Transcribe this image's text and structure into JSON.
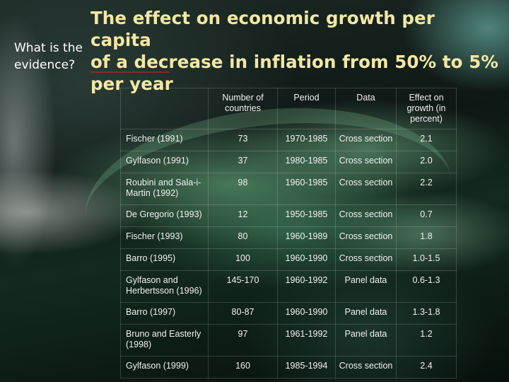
{
  "slide": {
    "question": "What is the evidence?",
    "title": "The effect on economic growth per capita\nof a decrease in inflation from 50% to 5%\nper year"
  },
  "table": {
    "columns": [
      "",
      "Number of countries",
      "Period",
      "Data",
      "Effect on growth (in percent)"
    ],
    "rows": [
      {
        "study": "Fischer (1991)",
        "countries": "73",
        "period": "1970-1985",
        "data": "Cross section",
        "effect": "2.1"
      },
      {
        "study": "Gylfason (1991)",
        "countries": "37",
        "period": "1980-1985",
        "data": "Cross section",
        "effect": "2.0"
      },
      {
        "study": "Roubini and Sala-i-Martin (1992)",
        "countries": "98",
        "period": "1960-1985",
        "data": "Cross section",
        "effect": "2.2"
      },
      {
        "study": "De Gregorio (1993)",
        "countries": "12",
        "period": "1950-1985",
        "data": "Cross section",
        "effect": "0.7"
      },
      {
        "study": "Fischer (1993)",
        "countries": "80",
        "period": "1960-1989",
        "data": "Cross section",
        "effect": "1.8"
      },
      {
        "study": "Barro (1995)",
        "countries": "100",
        "period": "1960-1990",
        "data": "Cross section",
        "effect": "1.0-1.5"
      },
      {
        "study": "Gylfason and Herbertsson (1996)",
        "countries": "145-170",
        "period": "1960-1992",
        "data": "Panel data",
        "effect": "0.6-1.3"
      },
      {
        "study": "Barro (1997)",
        "countries": "80-87",
        "period": "1960-1990",
        "data": "Panel data",
        "effect": "1.3-1.8"
      },
      {
        "study": "Bruno and Easterly (1998)",
        "countries": "97",
        "period": "1961-1992",
        "data": "Panel data",
        "effect": "1.2"
      },
      {
        "study": "Gylfason (1999)",
        "countries": "160",
        "period": "1985-1994",
        "data": "Cross section",
        "effect": "2.4"
      }
    ]
  }
}
